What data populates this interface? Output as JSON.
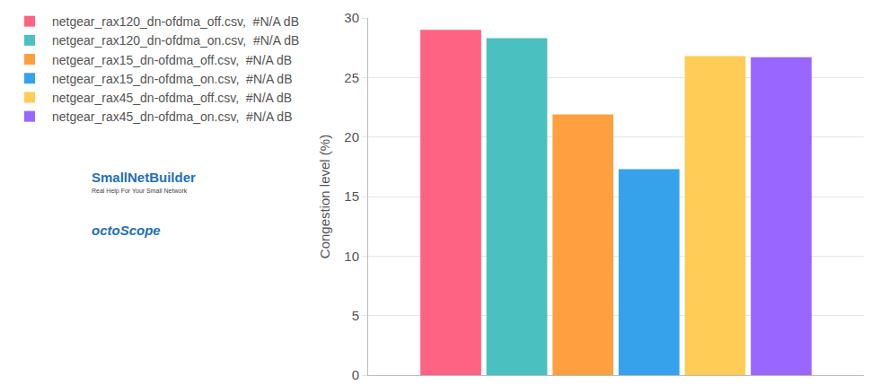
{
  "chart_data": {
    "type": "bar",
    "y_label": "Congestion level (%)",
    "categories": [
      null
    ],
    "series": [
      {
        "name": "netgear_rax120_dn-ofdma_off.csv,  #N/A dB",
        "color": "#ff6384",
        "values": [
          29.0
        ]
      },
      {
        "name": "netgear_rax120_dn-ofdma_on.csv,  #N/A dB",
        "color": "#4bc0c0",
        "values": [
          28.3
        ]
      },
      {
        "name": "netgear_rax15_dn-ofdma_off.csv,  #N/A dB",
        "color": "#ff9f40",
        "values": [
          21.9
        ]
      },
      {
        "name": "netgear_rax15_dn-ofdma_on.csv,  #N/A dB",
        "color": "#36a2eb",
        "values": [
          17.3
        ]
      },
      {
        "name": "netgear_rax45_dn-ofdma_off.csv,  #N/A dB",
        "color": "#ffcd56",
        "values": [
          26.8
        ]
      },
      {
        "name": "netgear_rax45_dn-ofdma_on.csv,  #N/A dB",
        "color": "#9966ff",
        "values": [
          26.7
        ]
      }
    ],
    "ylim": [
      0,
      30
    ],
    "yticks": [
      0,
      5,
      10,
      15,
      20,
      25,
      30
    ],
    "grid": true,
    "legend": "left",
    "tick_labels": "y",
    "annotations": [
      "SmallNetBuilder",
      "Real Help For Your Small Network",
      "octoScope"
    ]
  }
}
